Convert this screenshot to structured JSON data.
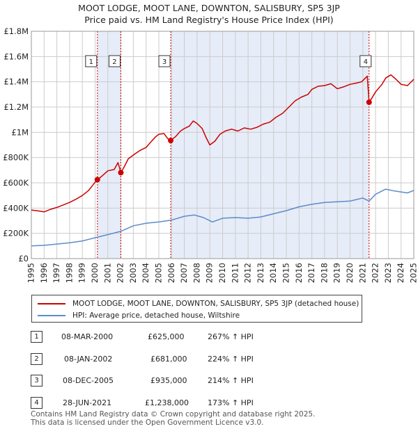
{
  "title": {
    "line1": "MOOT LODGE, MOOT LANE, DOWNTON, SALISBURY, SP5 3JP",
    "line2": "Price paid vs. HM Land Registry's House Price Index (HPI)"
  },
  "legend": {
    "property_label": "MOOT LODGE, MOOT LANE, DOWNTON, SALISBURY, SP5 3JP (detached house)",
    "hpi_label": "HPI: Average price, detached house, Wiltshire"
  },
  "colors": {
    "property": "#cc0000",
    "hpi": "#5b8cc8",
    "shade": "#e6ecf8",
    "grid": "#cccccc",
    "vline": "#cc0000"
  },
  "sales": [
    {
      "num": "1",
      "date": "08-MAR-2000",
      "price": "£625,000",
      "hpi_change": "267% ↑ HPI"
    },
    {
      "num": "2",
      "date": "08-JAN-2002",
      "price": "£681,000",
      "hpi_change": "224% ↑ HPI"
    },
    {
      "num": "3",
      "date": "08-DEC-2005",
      "price": "£935,000",
      "hpi_change": "214% ↑ HPI"
    },
    {
      "num": "4",
      "date": "28-JUN-2021",
      "price": "£1,238,000",
      "hpi_change": "173% ↑ HPI"
    }
  ],
  "footer": {
    "line1": "Contains HM Land Registry data © Crown copyright and database right 2025.",
    "line2": "This data is licensed under the Open Government Licence v3.0."
  },
  "chart_data": {
    "type": "line",
    "x_range": [
      1995,
      2025
    ],
    "y_range": [
      0,
      1800000
    ],
    "y_ticks": [
      {
        "value": 0,
        "label": "£0"
      },
      {
        "value": 200000,
        "label": "£200K"
      },
      {
        "value": 400000,
        "label": "£400K"
      },
      {
        "value": 600000,
        "label": "£600K"
      },
      {
        "value": 800000,
        "label": "£800K"
      },
      {
        "value": 1000000,
        "label": "£1M"
      },
      {
        "value": 1200000,
        "label": "£1.2M"
      },
      {
        "value": 1400000,
        "label": "£1.4M"
      },
      {
        "value": 1600000,
        "label": "£1.6M"
      },
      {
        "value": 1800000,
        "label": "£1.8M"
      }
    ],
    "x_ticks": [
      "1995",
      "1996",
      "1997",
      "1998",
      "1999",
      "2000",
      "2001",
      "2002",
      "2003",
      "2004",
      "2005",
      "2006",
      "2007",
      "2008",
      "2009",
      "2010",
      "2011",
      "2012",
      "2013",
      "2014",
      "2015",
      "2016",
      "2017",
      "2018",
      "2019",
      "2020",
      "2021",
      "2022",
      "2023",
      "2024",
      "2025"
    ],
    "shaded_ranges": [
      [
        2000.18,
        2002.02
      ],
      [
        2005.93,
        2021.49
      ]
    ],
    "sale_markers": [
      {
        "label": "1",
        "x": 2000.18,
        "y": 625000
      },
      {
        "label": "2",
        "x": 2002.02,
        "y": 681000
      },
      {
        "label": "3",
        "x": 2005.93,
        "y": 935000
      },
      {
        "label": "4",
        "x": 2021.49,
        "y": 1238000
      }
    ],
    "series": [
      {
        "name": "MOOT LODGE, MOOT LANE, DOWNTON, SALISBURY, SP5 3JP (detached house)",
        "points": [
          [
            1995.0,
            385000
          ],
          [
            1995.5,
            378000
          ],
          [
            1996.0,
            370000
          ],
          [
            1996.5,
            390000
          ],
          [
            1997.0,
            405000
          ],
          [
            1997.5,
            425000
          ],
          [
            1998.0,
            445000
          ],
          [
            1998.5,
            470000
          ],
          [
            1999.0,
            500000
          ],
          [
            1999.5,
            540000
          ],
          [
            2000.0,
            605000
          ],
          [
            2000.18,
            625000
          ],
          [
            2000.5,
            650000
          ],
          [
            2001.0,
            695000
          ],
          [
            2001.5,
            705000
          ],
          [
            2001.8,
            760000
          ],
          [
            2002.02,
            681000
          ],
          [
            2002.3,
            730000
          ],
          [
            2002.6,
            790000
          ],
          [
            2003.0,
            820000
          ],
          [
            2003.5,
            855000
          ],
          [
            2004.0,
            880000
          ],
          [
            2004.3,
            915000
          ],
          [
            2004.7,
            960000
          ],
          [
            2005.0,
            985000
          ],
          [
            2005.4,
            990000
          ],
          [
            2005.7,
            950000
          ],
          [
            2005.93,
            935000
          ],
          [
            2006.3,
            965000
          ],
          [
            2006.7,
            1010000
          ],
          [
            2007.0,
            1030000
          ],
          [
            2007.4,
            1050000
          ],
          [
            2007.7,
            1090000
          ],
          [
            2008.0,
            1070000
          ],
          [
            2008.4,
            1030000
          ],
          [
            2008.7,
            960000
          ],
          [
            2009.0,
            900000
          ],
          [
            2009.4,
            930000
          ],
          [
            2009.8,
            985000
          ],
          [
            2010.2,
            1010000
          ],
          [
            2010.7,
            1025000
          ],
          [
            2011.2,
            1010000
          ],
          [
            2011.7,
            1035000
          ],
          [
            2012.2,
            1025000
          ],
          [
            2012.7,
            1040000
          ],
          [
            2013.2,
            1065000
          ],
          [
            2013.7,
            1080000
          ],
          [
            2014.2,
            1120000
          ],
          [
            2014.7,
            1150000
          ],
          [
            2015.2,
            1200000
          ],
          [
            2015.7,
            1250000
          ],
          [
            2016.2,
            1280000
          ],
          [
            2016.7,
            1300000
          ],
          [
            2017.0,
            1340000
          ],
          [
            2017.5,
            1365000
          ],
          [
            2018.0,
            1370000
          ],
          [
            2018.5,
            1385000
          ],
          [
            2019.0,
            1345000
          ],
          [
            2019.5,
            1360000
          ],
          [
            2020.0,
            1380000
          ],
          [
            2020.5,
            1390000
          ],
          [
            2020.9,
            1400000
          ],
          [
            2021.2,
            1430000
          ],
          [
            2021.35,
            1445000
          ],
          [
            2021.49,
            1238000
          ],
          [
            2021.7,
            1270000
          ],
          [
            2022.0,
            1320000
          ],
          [
            2022.5,
            1380000
          ],
          [
            2022.8,
            1430000
          ],
          [
            2023.2,
            1455000
          ],
          [
            2023.6,
            1420000
          ],
          [
            2024.0,
            1380000
          ],
          [
            2024.5,
            1370000
          ],
          [
            2025.0,
            1420000
          ]
        ]
      },
      {
        "name": "HPI: Average price, detached house, Wiltshire",
        "points": [
          [
            1995.0,
            100000
          ],
          [
            1996.0,
            105000
          ],
          [
            1997.0,
            115000
          ],
          [
            1998.0,
            125000
          ],
          [
            1999.0,
            140000
          ],
          [
            2000.0,
            165000
          ],
          [
            2001.0,
            190000
          ],
          [
            2002.0,
            215000
          ],
          [
            2003.0,
            260000
          ],
          [
            2004.0,
            280000
          ],
          [
            2005.0,
            290000
          ],
          [
            2006.0,
            305000
          ],
          [
            2007.0,
            335000
          ],
          [
            2007.8,
            345000
          ],
          [
            2008.5,
            325000
          ],
          [
            2009.2,
            290000
          ],
          [
            2010.0,
            320000
          ],
          [
            2011.0,
            325000
          ],
          [
            2012.0,
            320000
          ],
          [
            2013.0,
            330000
          ],
          [
            2014.0,
            355000
          ],
          [
            2015.0,
            380000
          ],
          [
            2016.0,
            410000
          ],
          [
            2017.0,
            430000
          ],
          [
            2018.0,
            445000
          ],
          [
            2019.0,
            450000
          ],
          [
            2020.0,
            455000
          ],
          [
            2021.0,
            480000
          ],
          [
            2021.49,
            455000
          ],
          [
            2022.0,
            510000
          ],
          [
            2022.8,
            550000
          ],
          [
            2023.5,
            535000
          ],
          [
            2024.5,
            520000
          ],
          [
            2025.0,
            540000
          ]
        ]
      }
    ],
    "xlabel": "",
    "ylabel": ""
  }
}
